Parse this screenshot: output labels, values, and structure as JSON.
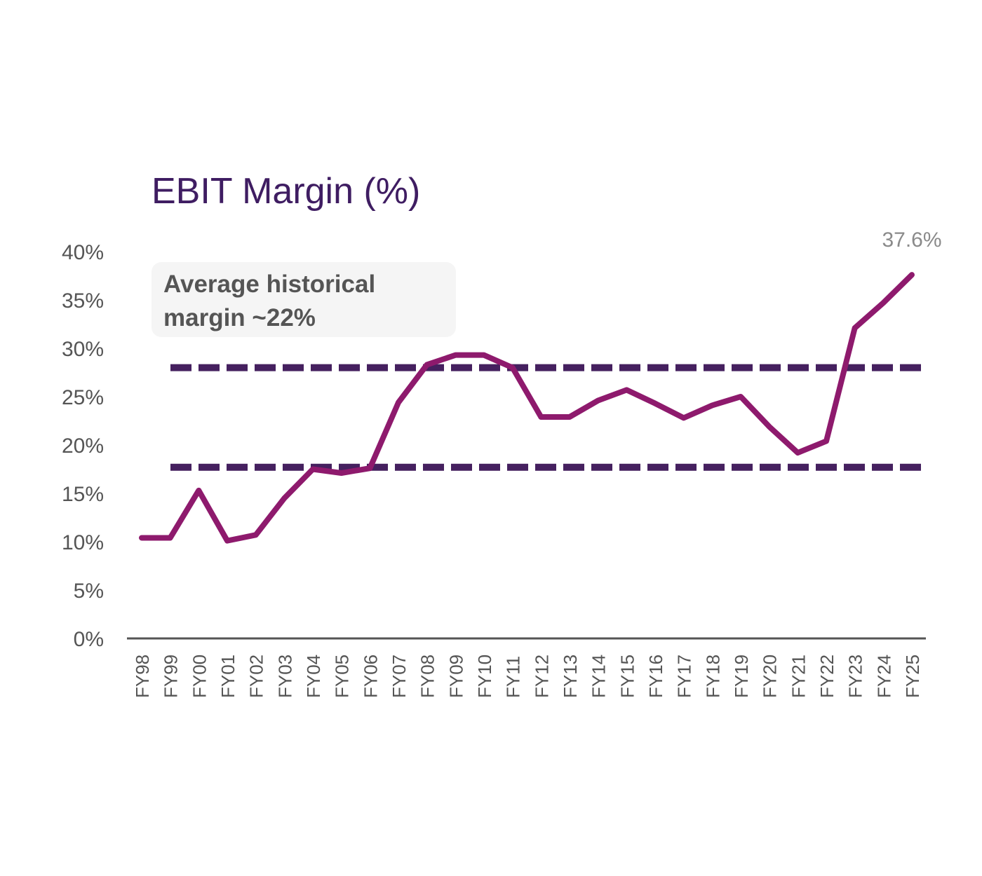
{
  "chart_data": {
    "type": "line",
    "title": "EBIT Margin (%)",
    "xlabel": "",
    "ylabel": "",
    "categories": [
      "FY98",
      "FY99",
      "FY00",
      "FY01",
      "FY02",
      "FY03",
      "FY04",
      "FY05",
      "FY06",
      "FY07",
      "FY08",
      "FY09",
      "FY10",
      "FY11",
      "FY12",
      "FY13",
      "FY14",
      "FY15",
      "FY16",
      "FY17",
      "FY18",
      "FY19",
      "FY20",
      "FY21",
      "FY22",
      "FY23",
      "FY24",
      "FY25"
    ],
    "series": [
      {
        "values": [
          10.4,
          10.4,
          15.3,
          10.1,
          10.7,
          14.5,
          17.5,
          17.1,
          17.6,
          24.4,
          28.3,
          29.3,
          29.3,
          28.0,
          22.9,
          22.9,
          24.6,
          25.7,
          24.3,
          22.8,
          24.1,
          25.0,
          21.9,
          19.2,
          20.4,
          32.1,
          34.7,
          37.6
        ]
      }
    ],
    "reference_lines": [
      28.0,
      17.7
    ],
    "ylim": [
      0,
      40
    ],
    "yticks": [
      "0%",
      "5%",
      "10%",
      "15%",
      "20%",
      "25%",
      "30%",
      "35%",
      "40%"
    ],
    "ytick_values": [
      0,
      5,
      10,
      15,
      20,
      25,
      30,
      35,
      40
    ],
    "grid": false,
    "annotation": {
      "text_line1": "Average historical",
      "text_line2": "margin ~22%"
    },
    "end_label": "37.6%",
    "colors": {
      "line": "#8e1a6d",
      "reference": "#45205f",
      "title": "#3f1d62",
      "axis": "#555555",
      "annotation_bg": "#f5f5f5",
      "annotation_text": "#555555",
      "end_label": "#8a8a8a"
    }
  }
}
